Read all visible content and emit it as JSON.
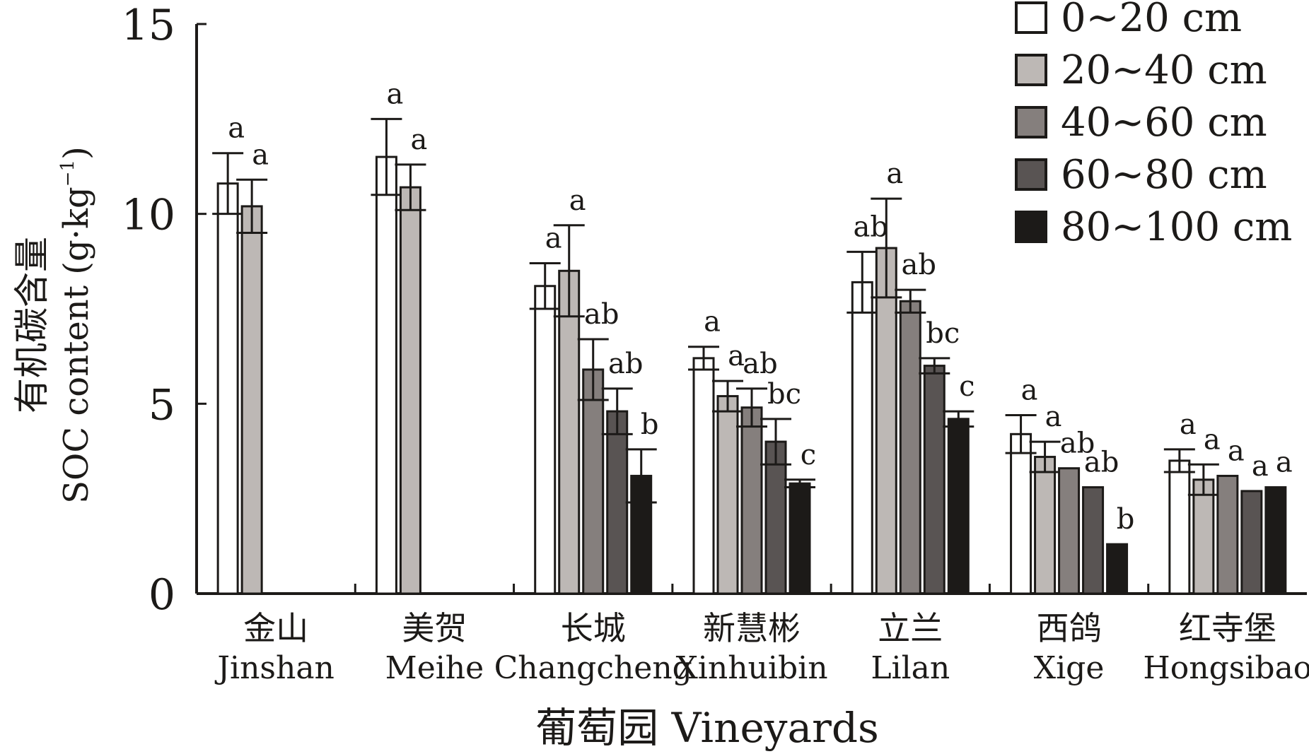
{
  "chart_data": {
    "type": "bar",
    "ylabel_cn": "有机碳含量",
    "ylabel_en": "SOC content (g·kg",
    "ylabel_exp": "−1",
    "ylabel_close": ")",
    "xlabel": "葡萄园 Vineyards",
    "ylim": [
      0,
      15
    ],
    "yticks": [
      0,
      5,
      10,
      15
    ],
    "categories": [
      {
        "cn": "金山",
        "en": "Jinshan"
      },
      {
        "cn": "美贺",
        "en": "Meihe"
      },
      {
        "cn": "长城",
        "en": "Changcheng"
      },
      {
        "cn": "新慧彬",
        "en": "Xinhuibin"
      },
      {
        "cn": "立兰",
        "en": "Lilan"
      },
      {
        "cn": "西鸽",
        "en": "Xige"
      },
      {
        "cn": "红寺堡",
        "en": "Hongsibao"
      }
    ],
    "series": [
      {
        "name": "0~20 cm",
        "color": "#ffffff",
        "values": [
          10.8,
          11.5,
          8.1,
          6.2,
          8.2,
          4.2,
          3.5
        ],
        "errors": [
          0.8,
          1.0,
          0.6,
          0.3,
          0.8,
          0.5,
          0.3
        ],
        "labels": [
          "a",
          "a",
          "a",
          "a",
          "ab",
          "a",
          "a"
        ]
      },
      {
        "name": "20~40 cm",
        "color": "#bdb8b5",
        "values": [
          10.2,
          10.7,
          8.5,
          5.2,
          9.1,
          3.6,
          3.0
        ],
        "errors": [
          0.7,
          0.6,
          1.2,
          0.4,
          1.3,
          0.4,
          0.4
        ],
        "labels": [
          "a",
          "a",
          "a",
          "a",
          "a",
          "a",
          "a"
        ]
      },
      {
        "name": "40~60 cm",
        "color": "#857f7d",
        "values": [
          null,
          null,
          5.9,
          4.9,
          7.7,
          3.3,
          3.1
        ],
        "errors": [
          null,
          null,
          0.8,
          0.5,
          0.3,
          0,
          0
        ],
        "labels": [
          null,
          null,
          "ab",
          "ab",
          "ab",
          "ab",
          "a"
        ]
      },
      {
        "name": "60~80 cm",
        "color": "#595453",
        "values": [
          null,
          null,
          4.8,
          4.0,
          6.0,
          2.8,
          2.7
        ],
        "errors": [
          null,
          null,
          0.6,
          0.6,
          0.2,
          0,
          0
        ],
        "labels": [
          null,
          null,
          "ab",
          "bc",
          "bc",
          "ab",
          "a"
        ]
      },
      {
        "name": "80~100 cm",
        "color": "#1c1a18",
        "values": [
          null,
          null,
          3.1,
          2.9,
          4.6,
          1.3,
          2.8
        ],
        "errors": [
          null,
          null,
          0.7,
          0.1,
          0.2,
          0,
          0
        ],
        "labels": [
          null,
          null,
          "b",
          "c",
          "c",
          "b",
          "a"
        ]
      }
    ]
  }
}
